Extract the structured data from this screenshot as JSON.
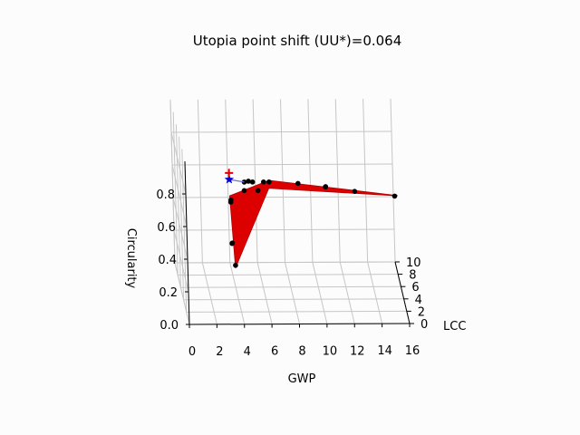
{
  "chart_data": {
    "type": "scatter",
    "title": "Utopia point shift (UU*)=0.064",
    "xlabel": "GWP",
    "ylabel": "LCC",
    "zlabel": "Circularity",
    "x_ticks": [
      "0",
      "2",
      "4",
      "6",
      "8",
      "10",
      "12",
      "14",
      "16"
    ],
    "y_ticks": [
      "0",
      "2",
      "4",
      "6",
      "8",
      "10"
    ],
    "z_ticks": [
      "0.0",
      "0.2",
      "0.4",
      "0.6",
      "0.8"
    ],
    "xlim": [
      0,
      16
    ],
    "ylim": [
      0,
      10
    ],
    "zlim": [
      0,
      1
    ],
    "grid": true,
    "colors": {
      "surface": "#dd0000",
      "surface_edge": "#b30000",
      "points": "#000000",
      "utopia_star": "#0000cc",
      "shifted_cross": "#dd0000",
      "connector": "#6f6fcf"
    },
    "markers": {
      "star": "blue-star",
      "cross": "red-plus"
    },
    "points": [
      {
        "x": 3.3,
        "y": 0.3,
        "z": 0.75
      },
      {
        "x": 3.3,
        "y": 0.5,
        "z": 0.73
      },
      {
        "x": 3.3,
        "y": 0.2,
        "z": 0.49
      },
      {
        "x": 3.3,
        "y": 0.4,
        "z": 0.48
      },
      {
        "x": 3.5,
        "y": 0.3,
        "z": 0.35
      },
      {
        "x": 4.3,
        "y": 0.3,
        "z": 0.86
      },
      {
        "x": 4.6,
        "y": 0.3,
        "z": 0.865
      },
      {
        "x": 4.9,
        "y": 0.3,
        "z": 0.86
      },
      {
        "x": 4.3,
        "y": 0.5,
        "z": 0.8
      },
      {
        "x": 5.3,
        "y": 0.5,
        "z": 0.8
      },
      {
        "x": 5.7,
        "y": 0.3,
        "z": 0.86
      },
      {
        "x": 6.1,
        "y": 0.3,
        "z": 0.86
      },
      {
        "x": 8.2,
        "y": 0.3,
        "z": 0.85
      },
      {
        "x": 10.2,
        "y": 0.3,
        "z": 0.83
      },
      {
        "x": 10.2,
        "y": 0.5,
        "z": 0.82
      },
      {
        "x": 12.3,
        "y": 0.3,
        "z": 0.8
      },
      {
        "x": 15.2,
        "y": 0.3,
        "z": 0.77
      }
    ],
    "surface": [
      [
        [
          3.2,
          0.2,
          0.78
        ],
        [
          6.1,
          0.3,
          0.87
        ],
        [
          15.4,
          0.4,
          0.77
        ],
        [
          15.4,
          0.6,
          0.76
        ],
        [
          6.1,
          0.6,
          0.81
        ],
        [
          3.5,
          0.4,
          0.33
        ]
      ]
    ],
    "utopia_point": {
      "x": 3.2,
      "y": 0.2,
      "z": 0.88
    },
    "shifted_utopia_point": {
      "x": 3.2,
      "y": 0.2,
      "z": 0.92
    }
  }
}
